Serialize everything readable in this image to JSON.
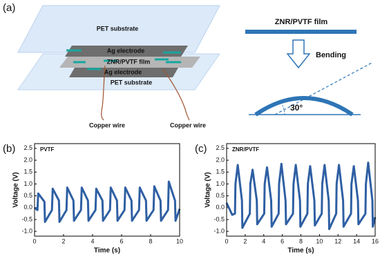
{
  "diagram": {
    "panel_label": "(a)",
    "layers": [
      "PET substrate",
      "Ag electrode",
      "ZNR/PVTF film",
      "Ag electrode",
      "PET substrate"
    ],
    "wires": [
      "Copper wire",
      "Copper wire"
    ],
    "bending": {
      "film": "ZNR/PVTF film",
      "action": "Bending",
      "angle": "30°"
    }
  },
  "chart_data": [
    {
      "type": "line",
      "panel_label": "(b)",
      "title": "PVTF",
      "xlabel": "Time (s)",
      "ylabel": "Voltage (V)",
      "color": "#2e5fa3",
      "x": [
        0,
        0.2,
        0.25,
        0.68,
        0.72,
        1.2,
        1.25,
        1.68,
        1.72,
        2.2,
        2.25,
        2.68,
        2.72,
        3.2,
        3.25,
        3.68,
        3.72,
        4.2,
        4.25,
        4.68,
        4.72,
        5.2,
        5.25,
        5.68,
        5.72,
        6.2,
        6.25,
        6.68,
        6.72,
        7.2,
        7.25,
        7.68,
        7.72,
        8.2,
        8.25,
        8.68,
        8.72,
        9.2,
        9.25,
        9.68,
        9.72,
        10
      ],
      "values": [
        0.0,
        -0.1,
        0.6,
        0.25,
        -0.6,
        -0.1,
        0.8,
        0.3,
        -0.6,
        -0.1,
        0.85,
        0.3,
        -0.55,
        -0.1,
        0.85,
        0.3,
        -0.55,
        -0.1,
        0.8,
        0.3,
        -0.55,
        -0.1,
        0.85,
        0.3,
        -0.55,
        -0.1,
        0.85,
        0.3,
        -0.55,
        -0.1,
        0.85,
        0.3,
        -0.55,
        -0.1,
        0.9,
        0.3,
        -0.55,
        -0.1,
        1.1,
        0.3,
        -0.55,
        -0.05
      ],
      "xlim": [
        0,
        10
      ],
      "xticks": [
        0,
        2,
        4,
        6,
        8,
        10
      ],
      "ylim": [
        -1.2,
        2.7
      ],
      "yticks": [
        {
          "value": -1,
          "label": "-1.0"
        },
        -0.5,
        {
          "value": 0,
          "label": "0.0"
        },
        0.5,
        {
          "value": 1,
          "label": "1.0"
        },
        1.5,
        {
          "value": 2,
          "label": "2.0"
        },
        2.5
      ]
    },
    {
      "type": "line",
      "panel_label": "(c)",
      "title": "ZNR/PVTF",
      "xlabel": "Time (s)",
      "ylabel": "Voltage (V)",
      "color": "#2e5fa3",
      "x": [
        0,
        0.6,
        0.9,
        0.95,
        1.2,
        1.65,
        1.7,
        2.5,
        2.55,
        2.8,
        3.25,
        3.3,
        4.05,
        4.1,
        4.35,
        4.8,
        4.85,
        5.6,
        5.65,
        5.9,
        6.35,
        6.4,
        7.15,
        7.2,
        7.45,
        7.9,
        7.95,
        8.7,
        8.75,
        9.0,
        9.45,
        9.5,
        10.25,
        10.3,
        10.55,
        11.0,
        11.05,
        11.8,
        11.85,
        12.1,
        12.55,
        12.6,
        13.4,
        13.45,
        13.7,
        14.15,
        14.2,
        14.95,
        15.0,
        15.25,
        15.7,
        15.75,
        16
      ],
      "values": [
        0.2,
        -0.3,
        -0.25,
        1.0,
        1.8,
        0.3,
        -0.85,
        -0.25,
        1.0,
        1.6,
        0.3,
        -0.7,
        -0.25,
        1.0,
        1.7,
        0.3,
        -0.8,
        -0.25,
        1.0,
        1.85,
        0.3,
        -0.7,
        -0.25,
        1.0,
        1.8,
        0.3,
        -0.8,
        -0.25,
        1.0,
        1.75,
        0.3,
        -0.75,
        -0.25,
        1.0,
        1.8,
        0.3,
        -0.9,
        -0.25,
        1.0,
        1.8,
        0.3,
        -0.8,
        -0.25,
        1.0,
        1.75,
        0.3,
        -0.7,
        -0.25,
        1.0,
        1.9,
        0.3,
        -0.8,
        -0.4
      ],
      "xlim": [
        0,
        16
      ],
      "xticks": [
        0,
        2,
        4,
        6,
        8,
        10,
        12,
        14,
        16
      ],
      "ylim": [
        -1.2,
        2.7
      ],
      "yticks": [
        {
          "value": -1,
          "label": "-1.0"
        },
        -0.5,
        {
          "value": 0,
          "label": "0.0"
        },
        0.5,
        {
          "value": 1,
          "label": "1.0"
        },
        1.5,
        {
          "value": 2,
          "label": "2.0"
        },
        2.5
      ]
    }
  ]
}
